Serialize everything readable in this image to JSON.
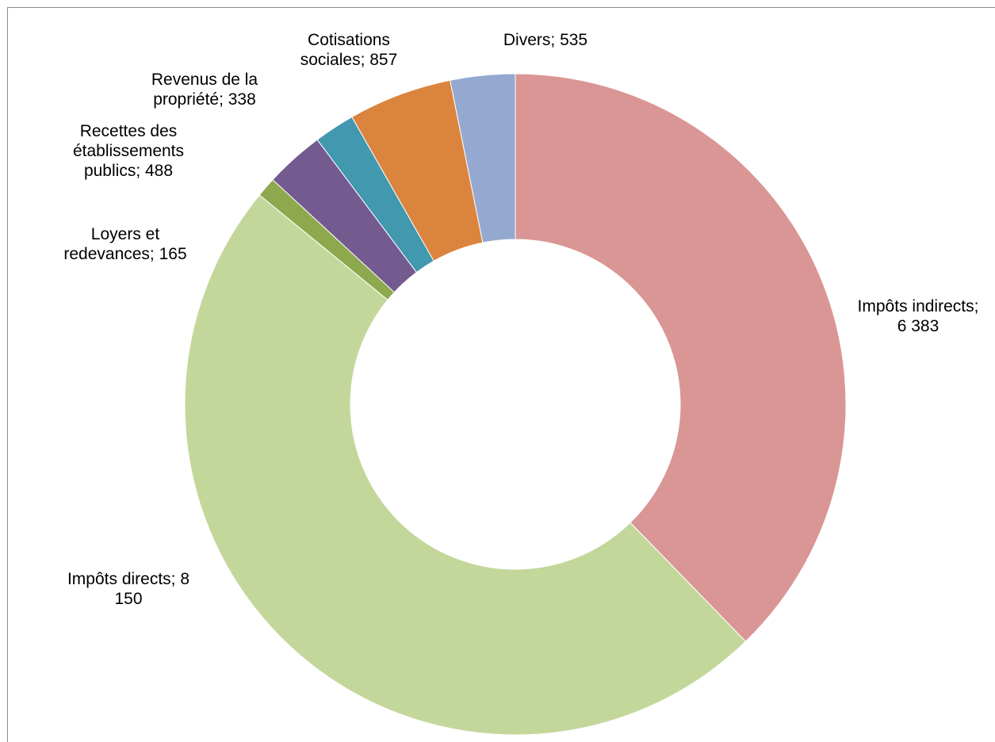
{
  "chart_data": {
    "type": "pie",
    "donut": true,
    "title": "",
    "legend": "none",
    "slices": [
      {
        "name": "Impôts indirects",
        "value": 6383,
        "label_lines": [
          "Impôts indirects;",
          "6 383"
        ],
        "color": "#D99694"
      },
      {
        "name": "Impôts directs",
        "value": 8150,
        "label_lines": [
          "Impôts directs; 8",
          "150"
        ],
        "color": "#C4D79B"
      },
      {
        "name": "Loyers et redevances",
        "value": 165,
        "label_lines": [
          "Loyers et",
          "redevances; 165"
        ],
        "color": "#8EA84E"
      },
      {
        "name": "Recettes des établissements publics",
        "value": 488,
        "label_lines": [
          "Recettes des",
          "établissements",
          "publics; 488"
        ],
        "color": "#735A8F"
      },
      {
        "name": "Revenus de la propriété",
        "value": 338,
        "label_lines": [
          "Revenus de la",
          "propriété; 338"
        ],
        "color": "#4198AF"
      },
      {
        "name": "Cotisations sociales",
        "value": 857,
        "label_lines": [
          "Cotisations",
          "sociales; 857"
        ],
        "color": "#DB843D"
      },
      {
        "name": "Divers",
        "value": 535,
        "label_lines": [
          "Divers; 535"
        ],
        "color": "#95A9D0"
      }
    ]
  }
}
